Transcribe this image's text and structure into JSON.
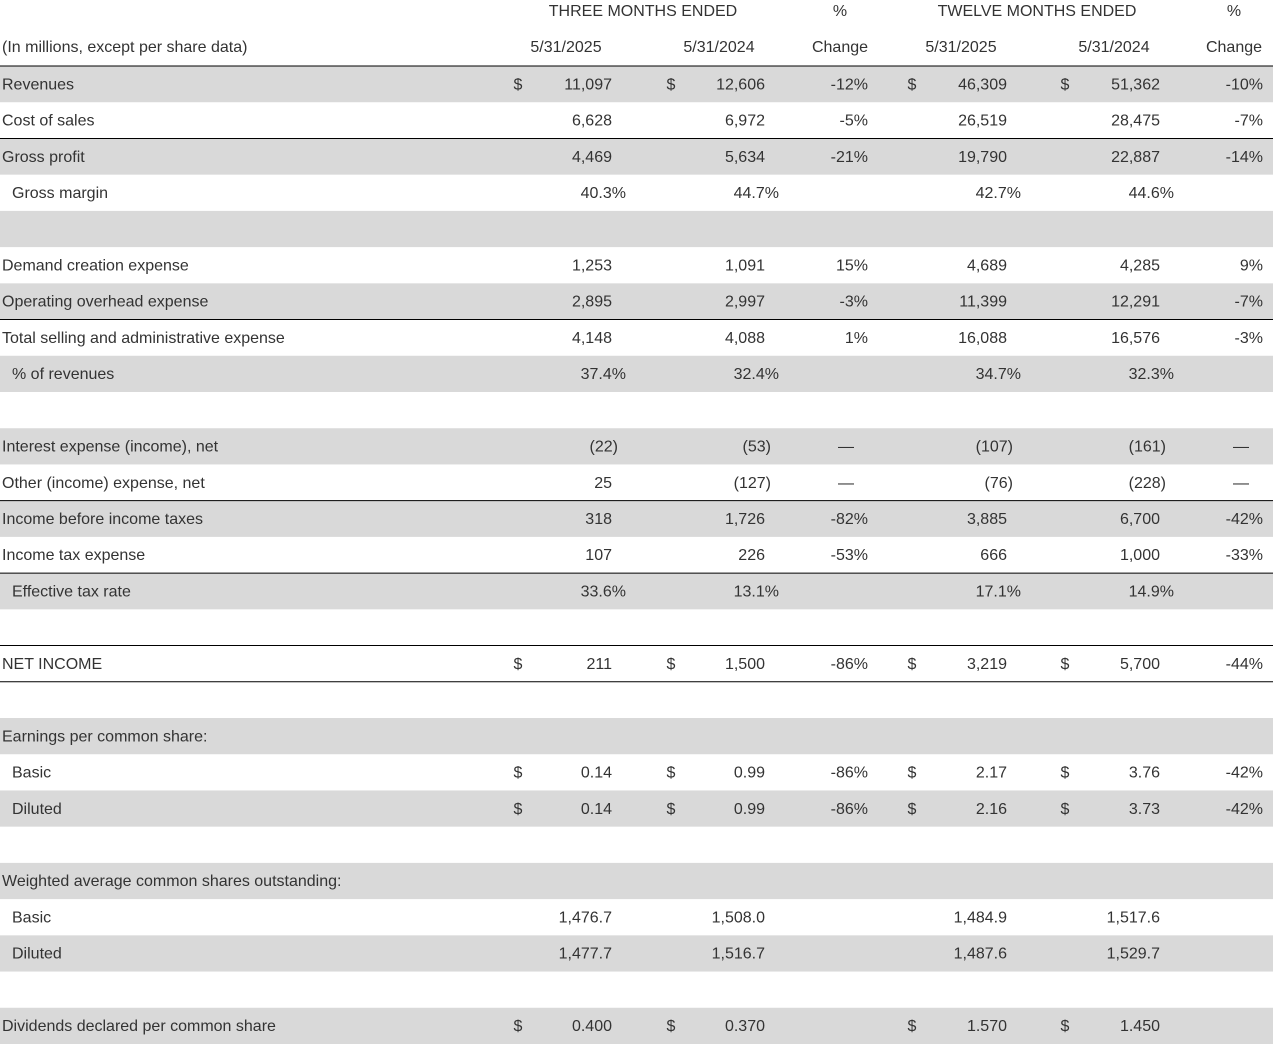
{
  "header": {
    "group1": "THREE MONTHS ENDED",
    "pct1": "%",
    "group2": "TWELVE MONTHS ENDED",
    "pct2": "%"
  },
  "subheader": [
    "(In millions, except per share data)",
    "5/31/2025",
    "5/31/2024",
    "Change",
    "5/31/2025",
    "5/31/2024",
    "Change"
  ],
  "rows": [
    {
      "label": "Revenues",
      "cells": [
        "$",
        "11,097",
        "$",
        "12,606",
        "-12%",
        "$",
        "46,309",
        "$",
        "51,362",
        "-10%"
      ]
    },
    {
      "label": "Cost of sales",
      "cells": [
        null,
        "6,628",
        null,
        "6,972",
        "-5%",
        null,
        "26,519",
        null,
        "28,475",
        "-7%"
      ]
    },
    {
      "label": "Gross profit",
      "cells": [
        null,
        "4,469",
        null,
        "5,634",
        "-21%",
        null,
        "19,790",
        null,
        "22,887",
        "-14%"
      ]
    },
    {
      "label": "Gross margin",
      "cells": [
        null,
        "40.3%",
        null,
        "44.7%",
        null,
        null,
        "42.7%",
        null,
        "44.6%",
        null
      ]
    },
    {
      "label": "Demand creation expense",
      "cells": [
        null,
        "1,253",
        null,
        "1,091",
        "15%",
        null,
        "4,689",
        null,
        "4,285",
        "9%"
      ]
    },
    {
      "label": "Operating overhead expense",
      "cells": [
        null,
        "2,895",
        null,
        "2,997",
        "-3%",
        null,
        "11,399",
        null,
        "12,291",
        "-7%"
      ]
    },
    {
      "label": "Total selling and administrative expense",
      "cells": [
        null,
        "4,148",
        null,
        "4,088",
        "1%",
        null,
        "16,088",
        null,
        "16,576",
        "-3%"
      ]
    },
    {
      "label": "% of revenues",
      "cells": [
        null,
        "37.4%",
        null,
        "32.4%",
        null,
        null,
        "34.7%",
        null,
        "32.3%",
        null
      ]
    },
    {
      "label": "Interest expense (income), net",
      "cells": [
        null,
        "(22)",
        null,
        "(53)",
        "—",
        null,
        "(107)",
        null,
        "(161)",
        "—"
      ]
    },
    {
      "label": "Other (income) expense, net",
      "cells": [
        null,
        "25",
        null,
        "(127)",
        "—",
        null,
        "(76)",
        null,
        "(228)",
        "—"
      ]
    },
    {
      "label": "Income before income taxes",
      "cells": [
        null,
        "318",
        null,
        "1,726",
        "-82%",
        null,
        "3,885",
        null,
        "6,700",
        "-42%"
      ]
    },
    {
      "label": "Income tax expense",
      "cells": [
        null,
        "107",
        null,
        "226",
        "-53%",
        null,
        "666",
        null,
        "1,000",
        "-33%"
      ]
    },
    {
      "label": "Effective tax rate",
      "cells": [
        null,
        "33.6%",
        null,
        "13.1%",
        null,
        null,
        "17.1%",
        null,
        "14.9%",
        null
      ]
    },
    {
      "label": "NET INCOME",
      "cells": [
        "$",
        "211",
        "$",
        "1,500",
        "-86%",
        "$",
        "3,219",
        "$",
        "5,700",
        "-44%"
      ]
    },
    {
      "label": "Earnings per common share:"
    },
    {
      "label": "Basic",
      "cells": [
        "$",
        "0.14",
        "$",
        "0.99",
        "-86%",
        "$",
        "2.17",
        "$",
        "3.76",
        "-42%"
      ]
    },
    {
      "label": "Diluted",
      "cells": [
        "$",
        "0.14",
        "$",
        "0.99",
        "-86%",
        "$",
        "2.16",
        "$",
        "3.73",
        "-42%"
      ]
    },
    {
      "label": "Weighted average common shares outstanding:"
    },
    {
      "label": "Basic",
      "cells": [
        null,
        "1,476.7",
        null,
        "1,508.0",
        null,
        null,
        "1,484.9",
        null,
        "1,517.6",
        null
      ]
    },
    {
      "label": "Diluted",
      "cells": [
        null,
        "1,477.7",
        null,
        "1,516.7",
        null,
        null,
        "1,487.6",
        null,
        "1,529.7",
        null
      ]
    },
    {
      "label": "Dividends declared per common share",
      "cells": [
        "$",
        "0.400",
        "$",
        "0.370",
        null,
        "$",
        "1.570",
        "$",
        "1.450",
        null
      ]
    }
  ]
}
